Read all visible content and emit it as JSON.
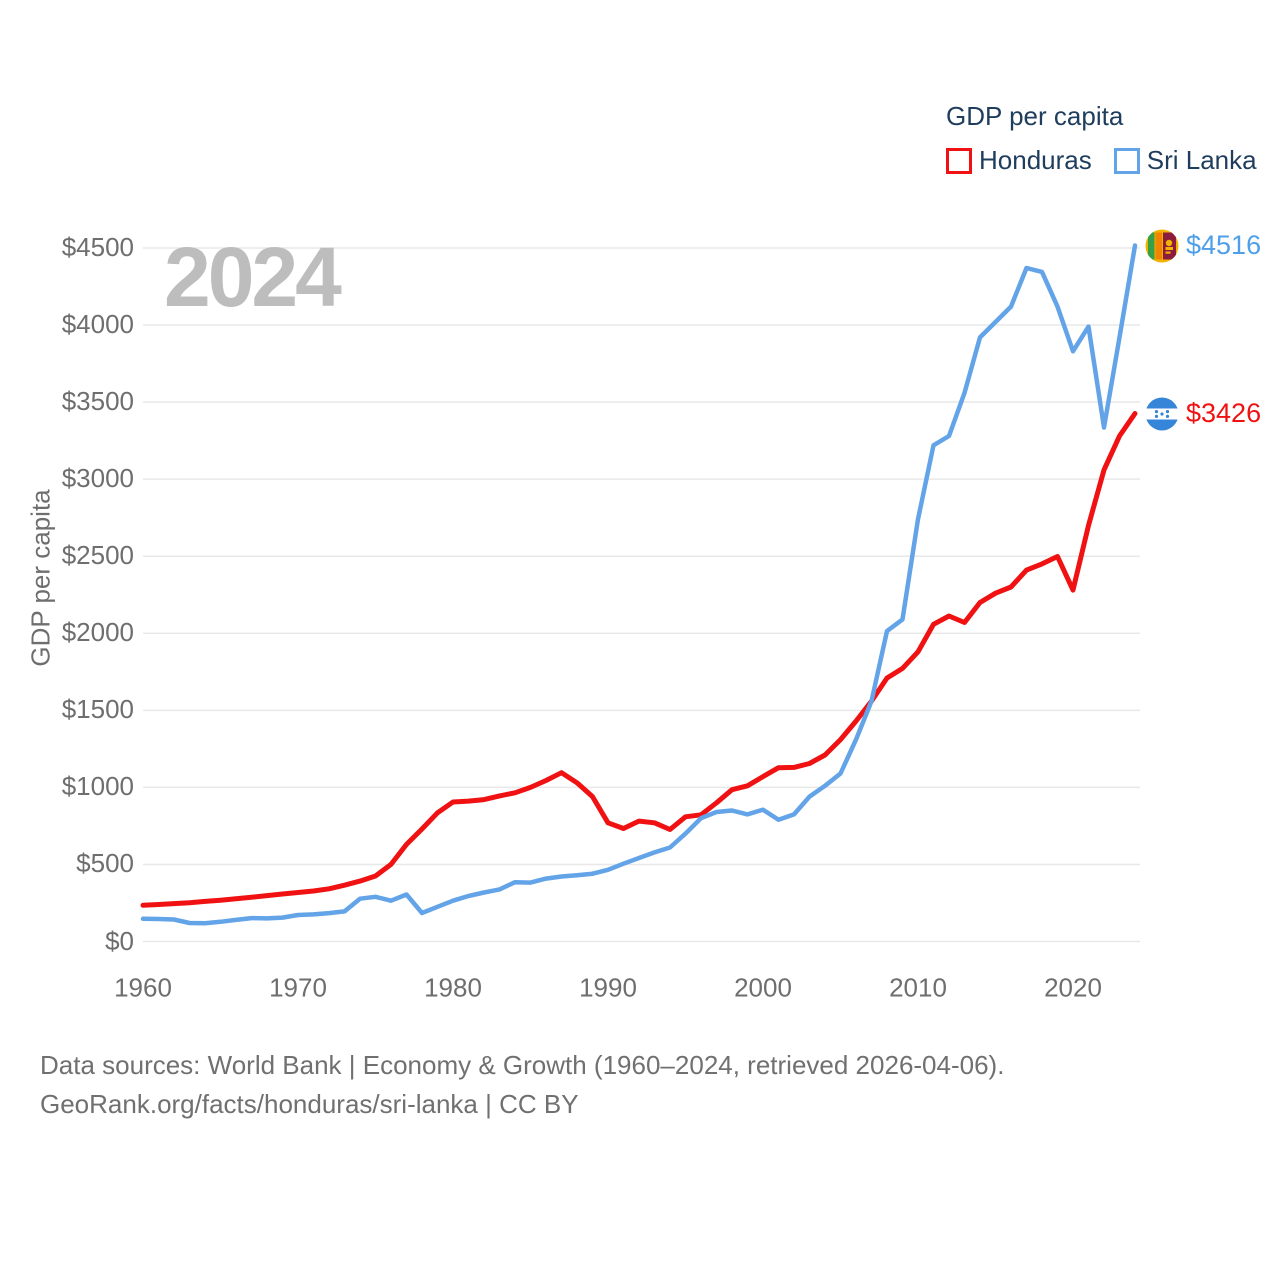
{
  "watermark": "2024",
  "legend": {
    "title": "GDP per capita",
    "items": [
      {
        "label": "Honduras",
        "color": "#f01212"
      },
      {
        "label": "Sri Lanka",
        "color": "#63a4e8"
      }
    ]
  },
  "y_axis": {
    "title": "GDP per capita",
    "tick_values": [
      0,
      500,
      1000,
      1500,
      2000,
      2500,
      3000,
      3500,
      4000,
      4500
    ],
    "tick_labels": [
      "$0",
      "$500",
      "$1000",
      "$1500",
      "$2000",
      "$2500",
      "$3000",
      "$3500",
      "$4000",
      "$4500"
    ]
  },
  "x_axis": {
    "tick_values": [
      1960,
      1970,
      1980,
      1990,
      2000,
      2010,
      2020
    ],
    "tick_labels": [
      "1960",
      "1970",
      "1980",
      "1990",
      "2000",
      "2010",
      "2020"
    ]
  },
  "end_labels": [
    {
      "country": "Sri Lanka",
      "value": 4516,
      "value_label": "$4516",
      "color": "#4f9fe8",
      "flag": "sri-lanka"
    },
    {
      "country": "Honduras",
      "value": 3426,
      "value_label": "$3426",
      "color": "#f01212",
      "flag": "honduras"
    }
  ],
  "footer": {
    "line1": "Data sources: World Bank | Economy & Growth (1960–2024, retrieved 2026-04-06).",
    "line2": "GeoRank.org/facts/honduras/sri-lanka | CC BY"
  },
  "chart_data": {
    "type": "line",
    "title": "GDP per capita",
    "xlabel": "",
    "ylabel": "GDP per capita",
    "xlim": [
      1960,
      2024
    ],
    "ylim": [
      0,
      4500
    ],
    "grid": true,
    "legend_position": "top-right",
    "x": [
      1960,
      1961,
      1962,
      1963,
      1964,
      1965,
      1966,
      1967,
      1968,
      1969,
      1970,
      1971,
      1972,
      1973,
      1974,
      1975,
      1976,
      1977,
      1978,
      1979,
      1980,
      1981,
      1982,
      1983,
      1984,
      1985,
      1986,
      1987,
      1988,
      1989,
      1990,
      1991,
      1992,
      1993,
      1994,
      1995,
      1996,
      1997,
      1998,
      1999,
      2000,
      2001,
      2002,
      2003,
      2004,
      2005,
      2006,
      2007,
      2008,
      2009,
      2010,
      2011,
      2012,
      2013,
      2014,
      2015,
      2016,
      2017,
      2018,
      2019,
      2020,
      2021,
      2022,
      2023,
      2024
    ],
    "series": [
      {
        "name": "Honduras",
        "color": "#f01212",
        "values": [
          235,
          240,
          246,
          252,
          260,
          268,
          277,
          287,
          298,
          308,
          318,
          328,
          342,
          365,
          392,
          425,
          500,
          630,
          730,
          835,
          905,
          911,
          921,
          945,
          965,
          1000,
          1045,
          1095,
          1030,
          940,
          770,
          733,
          781,
          770,
          727,
          809,
          822,
          900,
          985,
          1010,
          1070,
          1128,
          1130,
          1155,
          1210,
          1310,
          1430,
          1560,
          1710,
          1772,
          1880,
          2058,
          2112,
          2070,
          2200,
          2260,
          2300,
          2410,
          2450,
          2498,
          2280,
          2700,
          3060,
          3280,
          3426
        ]
      },
      {
        "name": "Sri Lanka",
        "color": "#63a4e8",
        "values": [
          147,
          146,
          143,
          120,
          118,
          128,
          140,
          152,
          150,
          155,
          172,
          176,
          184,
          195,
          278,
          290,
          265,
          305,
          185,
          225,
          265,
          295,
          318,
          338,
          385,
          382,
          408,
          422,
          430,
          440,
          465,
          505,
          542,
          578,
          610,
          700,
          800,
          840,
          850,
          825,
          855,
          790,
          825,
          940,
          1010,
          1090,
          1310,
          1560,
          2015,
          2090,
          2740,
          3220,
          3280,
          3560,
          3920,
          4020,
          4120,
          4370,
          4345,
          4120,
          3830,
          3990,
          3335,
          3920,
          4516
        ]
      }
    ],
    "end_value_labels": {
      "Sri Lanka": "$4516",
      "Honduras": "$3426"
    }
  }
}
